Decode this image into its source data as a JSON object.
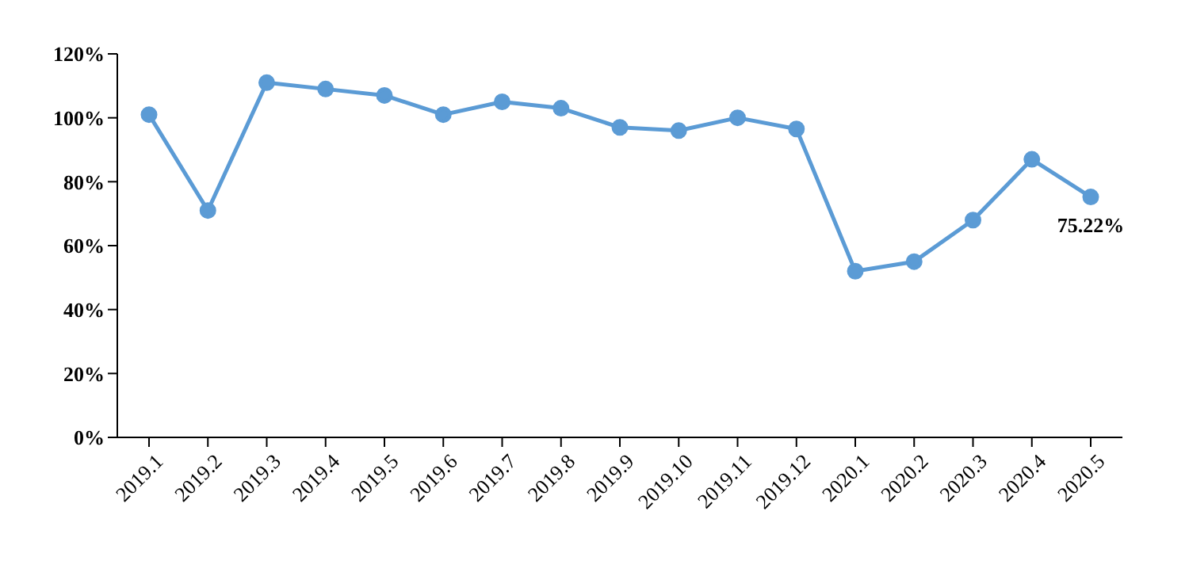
{
  "chart_data": {
    "type": "line",
    "categories": [
      "2019.1",
      "2019.2",
      "2019.3",
      "2019.4",
      "2019.5",
      "2019.6",
      "2019.7",
      "2019.8",
      "2019.9",
      "2019.10",
      "2019.11",
      "2019.12",
      "2020.1",
      "2020.2",
      "2020.3",
      "2020.4",
      "2020.5"
    ],
    "series": [
      {
        "color": "#5b9bd5",
        "values": [
          101,
          71,
          111,
          109,
          107,
          101,
          105,
          103,
          97,
          96,
          100,
          96.5,
          52,
          55,
          68,
          87,
          75.22
        ],
        "value_labels": [
          null,
          null,
          null,
          null,
          null,
          null,
          null,
          null,
          null,
          null,
          null,
          null,
          null,
          null,
          null,
          null,
          "75.22%"
        ]
      }
    ],
    "ylim": [
      0,
      120
    ],
    "yticks": [
      {
        "value": 0,
        "label": "0%"
      },
      {
        "value": 20,
        "label": "20%"
      },
      {
        "value": 40,
        "label": "40%"
      },
      {
        "value": 60,
        "label": "60%"
      },
      {
        "value": 80,
        "label": "80%"
      },
      {
        "value": 100,
        "label": "100%"
      },
      {
        "value": 120,
        "label": "120%"
      }
    ],
    "grid": false,
    "legend": false,
    "marker": "circle",
    "line_style": "solid"
  }
}
